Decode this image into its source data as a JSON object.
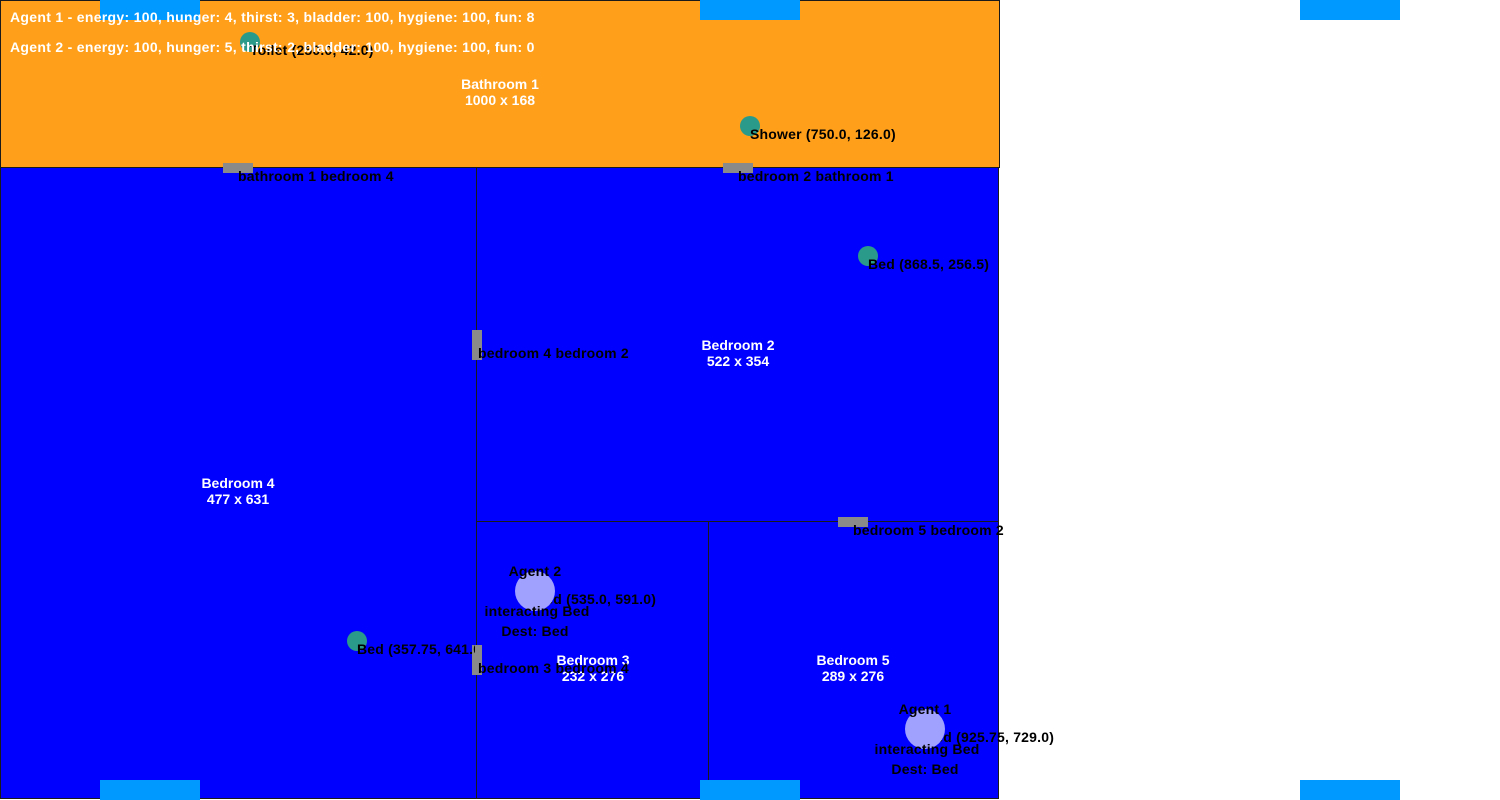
{
  "hud": {
    "agent1_status": "Agent 1 - energy: 100, hunger: 4, thirst: 3, bladder: 100, hygiene: 100, fun: 8",
    "agent2_status": "Agent 2 - energy: 100, hunger: 5, thirst: 2, bladder: 100, hygiene: 100, fun: 0"
  },
  "colors": {
    "bathroom": "#ff9f1a",
    "bedroom": "#0000ff",
    "window": "#0099ff",
    "door": "#8a8a8a",
    "object": "#2a9a8a",
    "agent": "#a0a0ff"
  },
  "rooms": {
    "bathroom1": {
      "name": "Bathroom 1",
      "size": "1000 x 168"
    },
    "bedroom2": {
      "name": "Bedroom 2",
      "size": "522 x 354"
    },
    "bedroom3": {
      "name": "Bedroom 3",
      "size": "232 x 276"
    },
    "bedroom4": {
      "name": "Bedroom 4",
      "size": "477 x 631"
    },
    "bedroom5": {
      "name": "Bedroom 5",
      "size": "289 x 276"
    }
  },
  "doors": {
    "bathroom1_bedroom4": "bathroom 1 bedroom 4",
    "bedroom2_bathroom1": "bedroom 2 bathroom 1",
    "bedroom4_bedroom2": "bedroom 4 bedroom 2",
    "bedroom5_bedroom2": "bedroom 5 bedroom 2",
    "bedroom3_bedroom4": "bedroom 3 bedroom 4"
  },
  "objects": {
    "toilet": "Toilet (250.0, 42.0)",
    "shower": "Shower (750.0, 126.0)",
    "bed_bedroom2": "Bed (868.5, 256.5)",
    "bed_bedroom4": "Bed (357.75, 641.0)",
    "bed_bedroom3": "Bed (535.0, 591.0)",
    "bed_bedroom5": "Bed (925.75, 729.0)"
  },
  "agents": {
    "agent1": {
      "name": "Agent 1",
      "status": "interacting Bed",
      "dest": "Dest: Bed"
    },
    "agent2": {
      "name": "Agent 2",
      "status": "interacting Bed",
      "dest": "Dest: Bed"
    }
  }
}
